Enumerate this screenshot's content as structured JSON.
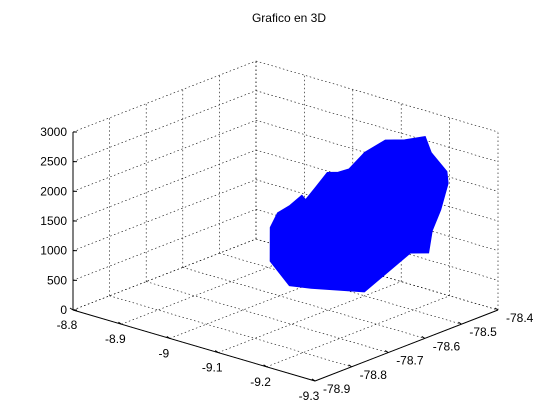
{
  "chart_data": {
    "type": "area",
    "title": "Grafico en 3D",
    "xlabel": "",
    "ylabel": "",
    "zlabel": "",
    "grid": true,
    "x_axis": {
      "ticks": [
        "-8.8",
        "-8.9",
        "-9",
        "-9.1",
        "-9.2",
        "-9.3"
      ],
      "range": [
        -9.3,
        -8.8
      ]
    },
    "y_axis": {
      "ticks": [
        "-78.9",
        "-78.8",
        "-78.7",
        "-78.6",
        "-78.5",
        "-78.4"
      ],
      "range": [
        -78.9,
        -78.4
      ]
    },
    "z_axis": {
      "ticks": [
        "0",
        "500",
        "1000",
        "1500",
        "2000",
        "2500",
        "3000"
      ],
      "range": [
        0,
        3000
      ]
    },
    "surface_color": "#0000ff",
    "surface_outline": [
      {
        "x": -8.89,
        "y": -78.48,
        "z": 600
      },
      {
        "x": -8.89,
        "y": -78.46,
        "z": 800
      },
      {
        "x": -8.9,
        "y": -78.44,
        "z": 900
      },
      {
        "x": -8.91,
        "y": -78.42,
        "z": 1050
      },
      {
        "x": -8.91,
        "y": -78.41,
        "z": 950
      },
      {
        "x": -8.93,
        "y": -78.41,
        "z": 1200
      },
      {
        "x": -8.97,
        "y": -78.43,
        "z": 1600
      },
      {
        "x": -9.0,
        "y": -78.44,
        "z": 1700
      },
      {
        "x": -9.03,
        "y": -78.45,
        "z": 1850
      },
      {
        "x": -9.07,
        "y": -78.46,
        "z": 2250
      },
      {
        "x": -9.12,
        "y": -78.47,
        "z": 2600
      },
      {
        "x": -9.16,
        "y": -78.47,
        "z": 2700
      },
      {
        "x": -9.21,
        "y": -78.48,
        "z": 2900
      },
      {
        "x": -9.23,
        "y": -78.49,
        "z": 2700
      },
      {
        "x": -9.27,
        "y": -78.5,
        "z": 2500
      },
      {
        "x": -9.28,
        "y": -78.51,
        "z": 2350
      },
      {
        "x": -9.28,
        "y": -78.53,
        "z": 1950
      },
      {
        "x": -9.27,
        "y": -78.54,
        "z": 1600
      },
      {
        "x": -9.27,
        "y": -78.55,
        "z": 1250
      },
      {
        "x": -9.24,
        "y": -78.56,
        "z": 1200
      },
      {
        "x": -9.16,
        "y": -78.58,
        "z": 400
      },
      {
        "x": -9.05,
        "y": -78.58,
        "z": 200
      },
      {
        "x": -8.99,
        "y": -78.56,
        "z": 50
      },
      {
        "x": -8.92,
        "y": -78.52,
        "z": 200
      }
    ]
  }
}
